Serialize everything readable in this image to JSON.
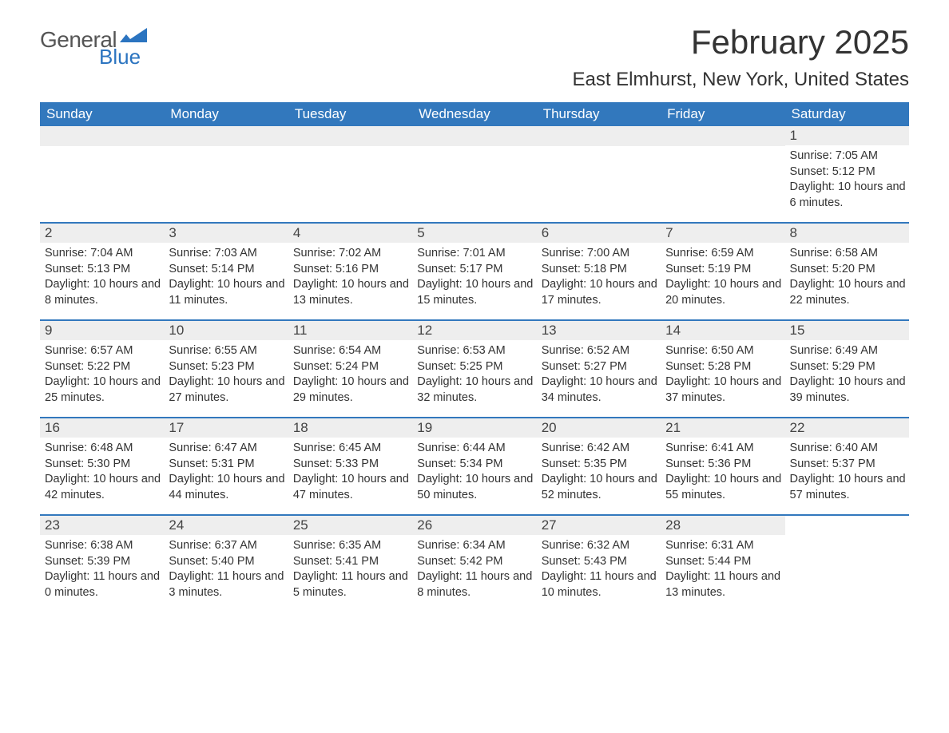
{
  "brand": {
    "word1": "General",
    "word2": "Blue"
  },
  "title": "February 2025",
  "location": "East Elmhurst, New York, United States",
  "colors": {
    "header_bg": "#3278bd",
    "header_text": "#ffffff",
    "daynum_bg": "#eeeeee",
    "divider": "#3278bd",
    "body_text": "#333333",
    "logo_blue": "#2b74c0",
    "page_bg": "#ffffff"
  },
  "typography": {
    "title_fontsize": 42,
    "location_fontsize": 24,
    "weekday_fontsize": 17,
    "daynum_fontsize": 17,
    "body_fontsize": 14.5
  },
  "weekdays": [
    "Sunday",
    "Monday",
    "Tuesday",
    "Wednesday",
    "Thursday",
    "Friday",
    "Saturday"
  ],
  "weeks": [
    [
      null,
      null,
      null,
      null,
      null,
      null,
      {
        "n": "1",
        "sunrise": "7:05 AM",
        "sunset": "5:12 PM",
        "daylight": "10 hours and 6 minutes."
      }
    ],
    [
      {
        "n": "2",
        "sunrise": "7:04 AM",
        "sunset": "5:13 PM",
        "daylight": "10 hours and 8 minutes."
      },
      {
        "n": "3",
        "sunrise": "7:03 AM",
        "sunset": "5:14 PM",
        "daylight": "10 hours and 11 minutes."
      },
      {
        "n": "4",
        "sunrise": "7:02 AM",
        "sunset": "5:16 PM",
        "daylight": "10 hours and 13 minutes."
      },
      {
        "n": "5",
        "sunrise": "7:01 AM",
        "sunset": "5:17 PM",
        "daylight": "10 hours and 15 minutes."
      },
      {
        "n": "6",
        "sunrise": "7:00 AM",
        "sunset": "5:18 PM",
        "daylight": "10 hours and 17 minutes."
      },
      {
        "n": "7",
        "sunrise": "6:59 AM",
        "sunset": "5:19 PM",
        "daylight": "10 hours and 20 minutes."
      },
      {
        "n": "8",
        "sunrise": "6:58 AM",
        "sunset": "5:20 PM",
        "daylight": "10 hours and 22 minutes."
      }
    ],
    [
      {
        "n": "9",
        "sunrise": "6:57 AM",
        "sunset": "5:22 PM",
        "daylight": "10 hours and 25 minutes."
      },
      {
        "n": "10",
        "sunrise": "6:55 AM",
        "sunset": "5:23 PM",
        "daylight": "10 hours and 27 minutes."
      },
      {
        "n": "11",
        "sunrise": "6:54 AM",
        "sunset": "5:24 PM",
        "daylight": "10 hours and 29 minutes."
      },
      {
        "n": "12",
        "sunrise": "6:53 AM",
        "sunset": "5:25 PM",
        "daylight": "10 hours and 32 minutes."
      },
      {
        "n": "13",
        "sunrise": "6:52 AM",
        "sunset": "5:27 PM",
        "daylight": "10 hours and 34 minutes."
      },
      {
        "n": "14",
        "sunrise": "6:50 AM",
        "sunset": "5:28 PM",
        "daylight": "10 hours and 37 minutes."
      },
      {
        "n": "15",
        "sunrise": "6:49 AM",
        "sunset": "5:29 PM",
        "daylight": "10 hours and 39 minutes."
      }
    ],
    [
      {
        "n": "16",
        "sunrise": "6:48 AM",
        "sunset": "5:30 PM",
        "daylight": "10 hours and 42 minutes."
      },
      {
        "n": "17",
        "sunrise": "6:47 AM",
        "sunset": "5:31 PM",
        "daylight": "10 hours and 44 minutes."
      },
      {
        "n": "18",
        "sunrise": "6:45 AM",
        "sunset": "5:33 PM",
        "daylight": "10 hours and 47 minutes."
      },
      {
        "n": "19",
        "sunrise": "6:44 AM",
        "sunset": "5:34 PM",
        "daylight": "10 hours and 50 minutes."
      },
      {
        "n": "20",
        "sunrise": "6:42 AM",
        "sunset": "5:35 PM",
        "daylight": "10 hours and 52 minutes."
      },
      {
        "n": "21",
        "sunrise": "6:41 AM",
        "sunset": "5:36 PM",
        "daylight": "10 hours and 55 minutes."
      },
      {
        "n": "22",
        "sunrise": "6:40 AM",
        "sunset": "5:37 PM",
        "daylight": "10 hours and 57 minutes."
      }
    ],
    [
      {
        "n": "23",
        "sunrise": "6:38 AM",
        "sunset": "5:39 PM",
        "daylight": "11 hours and 0 minutes."
      },
      {
        "n": "24",
        "sunrise": "6:37 AM",
        "sunset": "5:40 PM",
        "daylight": "11 hours and 3 minutes."
      },
      {
        "n": "25",
        "sunrise": "6:35 AM",
        "sunset": "5:41 PM",
        "daylight": "11 hours and 5 minutes."
      },
      {
        "n": "26",
        "sunrise": "6:34 AM",
        "sunset": "5:42 PM",
        "daylight": "11 hours and 8 minutes."
      },
      {
        "n": "27",
        "sunrise": "6:32 AM",
        "sunset": "5:43 PM",
        "daylight": "11 hours and 10 minutes."
      },
      {
        "n": "28",
        "sunrise": "6:31 AM",
        "sunset": "5:44 PM",
        "daylight": "11 hours and 13 minutes."
      },
      null
    ]
  ],
  "labels": {
    "sunrise": "Sunrise:",
    "sunset": "Sunset:",
    "daylight": "Daylight:"
  }
}
